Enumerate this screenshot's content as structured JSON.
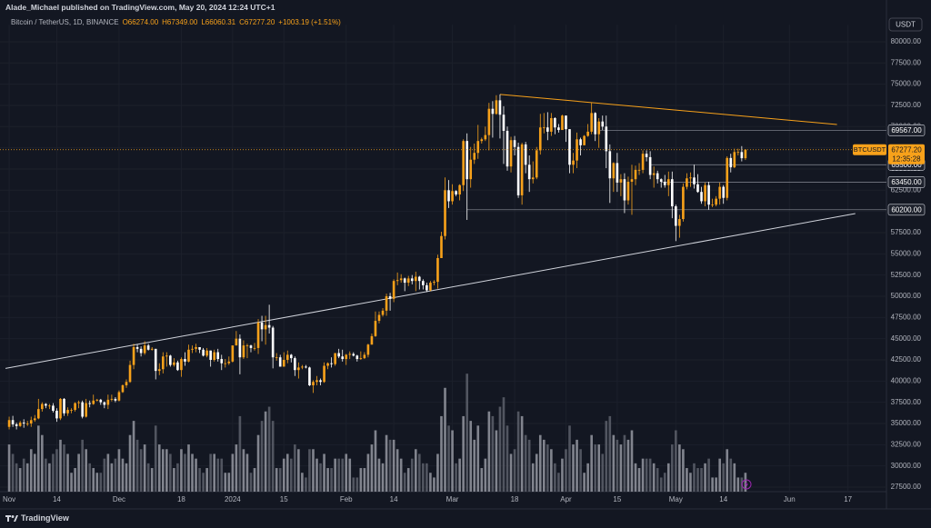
{
  "header": {
    "title": "Alade_Michael published on TradingView.com, May 20, 2024 12:24 UTC+1"
  },
  "legend": {
    "symbol": "Bitcoin / TetherUS, 1D, BINANCE",
    "items": [
      "O66274.00",
      "H67349.00",
      "L66060.31",
      "C67277.20",
      "+1003.19 (+1.51%)"
    ]
  },
  "footer": {
    "brand": "TradingView"
  },
  "chart_data": {
    "type": "candlestick",
    "currency": "USDT",
    "up_color": "#f7a11a",
    "down_color": "#ffffff",
    "volume_up_color": "#9598a1",
    "volume_down_color": "#5d606b",
    "grid": true,
    "xlim": [
      -2.5,
      239.5
    ],
    "xticks": [
      {
        "value": 0,
        "label": "Nov"
      },
      {
        "value": 13,
        "label": "14"
      },
      {
        "value": 30,
        "label": "Dec"
      },
      {
        "value": 47,
        "label": "18"
      },
      {
        "value": 61,
        "label": "2024"
      },
      {
        "value": 75,
        "label": "15"
      },
      {
        "value": 92,
        "label": "Feb"
      },
      {
        "value": 105,
        "label": "14"
      },
      {
        "value": 121,
        "label": "Mar"
      },
      {
        "value": 138,
        "label": "18"
      },
      {
        "value": 152,
        "label": "Apr"
      },
      {
        "value": 166,
        "label": "15"
      },
      {
        "value": 182,
        "label": "May"
      },
      {
        "value": 195,
        "label": "14"
      },
      {
        "value": 213,
        "label": "Jun"
      },
      {
        "value": 229,
        "label": "17"
      }
    ],
    "ylim": [
      26000,
      82000
    ],
    "yticks": [
      {
        "value": 27500,
        "label": "27500.00"
      },
      {
        "value": 30000,
        "label": "30000.00"
      },
      {
        "value": 32500,
        "label": "32500.00"
      },
      {
        "value": 35000,
        "label": "35000.00"
      },
      {
        "value": 37500,
        "label": "37500.00"
      },
      {
        "value": 40000,
        "label": "40000.00"
      },
      {
        "value": 42500,
        "label": "42500.00"
      },
      {
        "value": 45000,
        "label": "45000.00"
      },
      {
        "value": 47500,
        "label": "47500.00"
      },
      {
        "value": 50000,
        "label": "50000.00"
      },
      {
        "value": 52500,
        "label": "52500.00"
      },
      {
        "value": 55000,
        "label": "55000.00"
      },
      {
        "value": 57500,
        "label": "57500.00"
      },
      {
        "value": 60000,
        "label": "60000.00"
      },
      {
        "value": 62500,
        "label": "62500.00"
      },
      {
        "value": 65000,
        "label": "65000.00"
      },
      {
        "value": 67500,
        "label": "67500.00"
      },
      {
        "value": 70000,
        "label": "70000.00"
      },
      {
        "value": 72500,
        "label": "72500.00"
      },
      {
        "value": 75000,
        "label": "75000.00"
      },
      {
        "value": 77500,
        "label": "77500.00"
      },
      {
        "value": 80000,
        "label": "80000.00"
      }
    ],
    "open": [
      34600,
      35400,
      34900,
      34700,
      35100,
      35000,
      35000,
      35400,
      35600,
      36700,
      37300,
      37100,
      37100,
      36500,
      35600,
      37900,
      36200,
      36600,
      36600,
      37400,
      37500,
      35800,
      37400,
      37300,
      37700,
      37800,
      37500,
      37200,
      37800,
      37900,
      37700,
      38700,
      39500,
      39900,
      41900,
      44000,
      43800,
      43300,
      44200,
      43700,
      43800,
      41200,
      41400,
      42900,
      43000,
      41900,
      42200,
      41300,
      42600,
      42300,
      43700,
      43800,
      44000,
      43700,
      43000,
      43600,
      42500,
      43400,
      42600,
      42100,
      42100,
      42300,
      44200,
      45000,
      42800,
      44200,
      44200,
      43900,
      43900,
      46900,
      46100,
      46600,
      46300,
      42800,
      42800,
      41700,
      42500,
      43100,
      42700,
      41300,
      41600,
      41700,
      41600,
      39500,
      39900,
      40100,
      39900,
      41800,
      42100,
      42000,
      43300,
      42900,
      42600,
      43100,
      43200,
      43000,
      42600,
      42700,
      43100,
      44300,
      45300,
      47100,
      47800,
      48300,
      50000,
      49700,
      51800,
      51900,
      52100,
      51600,
      52100,
      51800,
      52300,
      51800,
      51300,
      50700,
      51600,
      51700,
      54500,
      57100,
      62500,
      61200,
      62400,
      62000,
      63100,
      68300,
      63800,
      66100,
      66900,
      68300,
      68500,
      69000,
      72100,
      71500,
      73100,
      71400,
      69500,
      65300,
      68400,
      67600,
      61900,
      67900,
      65500,
      63800,
      64000,
      67200,
      69900,
      69900,
      69400,
      71000,
      69900,
      69600,
      71300,
      69700,
      65500,
      66000,
      68500,
      67800,
      68900,
      69400,
      71600,
      69100,
      70600,
      70000,
      67100,
      63900,
      65700,
      63400,
      63800,
      61300,
      63500,
      63800,
      64900,
      64900,
      66800,
      66400,
      64300,
      64500,
      63800,
      63500,
      63100,
      63800,
      60600,
      58300,
      59100,
      62900,
      63900,
      64000,
      63200,
      62300,
      61200,
      63100,
      60800,
      60800,
      61500,
      62900,
      61600,
      66300,
      65200,
      67000,
      67000,
      66274
    ],
    "high": [
      35800,
      35900,
      35100,
      35300,
      35500,
      35300,
      35800,
      36000,
      37900,
      37500,
      37400,
      37300,
      37400,
      36800,
      38000,
      38000,
      36900,
      36800,
      37500,
      37700,
      37700,
      37900,
      37700,
      38400,
      37900,
      37900,
      37600,
      38400,
      38400,
      38100,
      38900,
      39600,
      40200,
      42400,
      44400,
      44300,
      44100,
      44700,
      44400,
      44000,
      43800,
      42100,
      43400,
      43400,
      43100,
      42700,
      42400,
      42800,
      43400,
      44300,
      44200,
      44400,
      44000,
      43900,
      43900,
      43600,
      43700,
      43800,
      43100,
      42600,
      42900,
      44200,
      45900,
      45500,
      44800,
      44400,
      44300,
      44500,
      47300,
      47700,
      47700,
      49000,
      46500,
      43300,
      43100,
      43400,
      43600,
      43200,
      42900,
      42200,
      41900,
      41900,
      41700,
      40100,
      40600,
      40300,
      42200,
      42200,
      42800,
      43300,
      43800,
      43700,
      43200,
      43500,
      43400,
      43100,
      43500,
      43400,
      44400,
      45600,
      48200,
      48200,
      48600,
      50300,
      50400,
      52000,
      52800,
      52600,
      52200,
      52400,
      52500,
      52900,
      52400,
      52000,
      51600,
      51800,
      51900,
      54900,
      57600,
      64000,
      63700,
      63200,
      62500,
      63200,
      68500,
      69200,
      67600,
      68000,
      70200,
      68700,
      70000,
      72800,
      73000,
      73700,
      73800,
      72400,
      70000,
      68800,
      68900,
      68100,
      68100,
      68200,
      66600,
      65900,
      67600,
      71500,
      71600,
      71700,
      71600,
      71100,
      70300,
      71400,
      71300,
      69700,
      66900,
      69300,
      68700,
      69000,
      70300,
      72800,
      71700,
      71000,
      71300,
      71300,
      67900,
      65800,
      66900,
      64400,
      64500,
      64100,
      65500,
      65400,
      65700,
      67200,
      67200,
      67100,
      65300,
      64800,
      63900,
      64300,
      64700,
      64700,
      60800,
      59600,
      63300,
      64500,
      64600,
      65500,
      64400,
      62900,
      63400,
      63500,
      61500,
      61800,
      63400,
      63100,
      66500,
      66800,
      67400,
      67400,
      67700,
      67349
    ],
    "low": [
      34300,
      34600,
      34300,
      34600,
      34500,
      34700,
      34600,
      35200,
      35500,
      36400,
      36800,
      36700,
      36300,
      35200,
      35400,
      35900,
      35900,
      36200,
      36400,
      36800,
      35600,
      35700,
      36900,
      37200,
      37600,
      37200,
      36800,
      36700,
      37600,
      37500,
      37600,
      38600,
      39200,
      39800,
      41400,
      43400,
      42900,
      43100,
      43600,
      43600,
      40200,
      40700,
      40900,
      41700,
      41700,
      41700,
      41200,
      40500,
      41800,
      42200,
      43300,
      43400,
      43300,
      42900,
      42800,
      41700,
      42300,
      42300,
      41300,
      41600,
      41900,
      42200,
      44200,
      40800,
      42600,
      42700,
      43400,
      43600,
      43200,
      44700,
      44300,
      45600,
      41500,
      42400,
      41700,
      41700,
      42100,
      42200,
      40600,
      40300,
      41400,
      41500,
      39400,
      38600,
      39500,
      39500,
      39800,
      41400,
      41600,
      41800,
      42700,
      42300,
      41900,
      42600,
      42900,
      42300,
      42500,
      42600,
      42800,
      44300,
      45200,
      46800,
      47600,
      47700,
      48300,
      49300,
      51300,
      51600,
      50600,
      51200,
      51400,
      50600,
      50800,
      50800,
      50500,
      50600,
      51300,
      50900,
      54500,
      56700,
      60400,
      60800,
      61800,
      61300,
      62400,
      59000,
      62800,
      65600,
      66200,
      68000,
      68300,
      67200,
      68700,
      71400,
      68600,
      65600,
      64800,
      64600,
      66600,
      61600,
      60800,
      64500,
      62300,
      63300,
      63800,
      66700,
      69200,
      68400,
      68900,
      69100,
      69300,
      69600,
      68200,
      64500,
      64500,
      65100,
      66600,
      67800,
      68800,
      69100,
      68300,
      67500,
      69600,
      65100,
      61000,
      62300,
      62300,
      61800,
      59800,
      60800,
      59600,
      63100,
      64300,
      64500,
      65900,
      63800,
      62800,
      63300,
      62800,
      62800,
      61800,
      59200,
      56500,
      56900,
      58800,
      62600,
      62900,
      62700,
      62200,
      60900,
      60600,
      60200,
      60500,
      60600,
      60800,
      60900,
      61300,
      64600,
      65100,
      66600,
      65900,
      66060
    ],
    "close": [
      35400,
      34900,
      34700,
      35100,
      35000,
      35000,
      35400,
      35600,
      36700,
      37300,
      37100,
      37100,
      36500,
      35600,
      37900,
      36200,
      36600,
      36600,
      37400,
      37500,
      35800,
      37400,
      37300,
      37700,
      37800,
      37500,
      37200,
      37800,
      37900,
      37700,
      38700,
      39500,
      39900,
      41900,
      44000,
      43800,
      43300,
      44200,
      43700,
      43800,
      41200,
      41400,
      42900,
      43000,
      41900,
      42200,
      41300,
      42600,
      42300,
      43700,
      43800,
      44000,
      43700,
      43000,
      43600,
      42500,
      43400,
      42600,
      42100,
      42100,
      42300,
      44200,
      45000,
      42800,
      44200,
      44200,
      43900,
      43900,
      46900,
      46100,
      46600,
      46300,
      42800,
      42800,
      41700,
      42500,
      43100,
      42700,
      41300,
      41600,
      41700,
      41600,
      39500,
      39900,
      40100,
      39900,
      41800,
      42100,
      42000,
      43300,
      42900,
      42600,
      43100,
      43200,
      43000,
      42600,
      42700,
      43100,
      44300,
      45300,
      47100,
      47800,
      48300,
      50000,
      49700,
      51800,
      51900,
      52100,
      51600,
      52100,
      51800,
      52300,
      51800,
      51300,
      50700,
      51600,
      51700,
      54500,
      57100,
      62500,
      61200,
      62400,
      62000,
      63100,
      68300,
      63800,
      66100,
      66900,
      68300,
      68500,
      69000,
      72100,
      71500,
      73100,
      71400,
      69500,
      65300,
      68400,
      67600,
      61900,
      67900,
      65500,
      63800,
      64000,
      67200,
      69900,
      69900,
      69400,
      71000,
      69900,
      69600,
      71300,
      69700,
      65500,
      66000,
      68500,
      67800,
      68900,
      69400,
      71600,
      69100,
      70600,
      70000,
      67100,
      63900,
      65700,
      63400,
      63800,
      61300,
      63500,
      63800,
      64900,
      64900,
      66800,
      66400,
      64300,
      64500,
      63800,
      63500,
      63100,
      63800,
      60600,
      58300,
      59100,
      62900,
      63900,
      64000,
      63200,
      62300,
      61200,
      63100,
      60800,
      60800,
      61500,
      62900,
      61600,
      66300,
      65200,
      67000,
      67000,
      66274,
      67277.2
    ],
    "volume_ylim": [
      0,
      130
    ],
    "volume": [
      50,
      40,
      30,
      25,
      35,
      30,
      45,
      40,
      70,
      60,
      35,
      30,
      40,
      45,
      55,
      50,
      40,
      20,
      25,
      40,
      55,
      45,
      30,
      25,
      20,
      20,
      35,
      40,
      30,
      35,
      45,
      35,
      30,
      60,
      75,
      55,
      45,
      50,
      30,
      25,
      70,
      50,
      45,
      45,
      40,
      25,
      30,
      45,
      40,
      50,
      40,
      35,
      25,
      20,
      25,
      40,
      40,
      35,
      35,
      20,
      20,
      40,
      50,
      80,
      45,
      40,
      20,
      25,
      60,
      75,
      85,
      90,
      75,
      25,
      25,
      35,
      40,
      35,
      50,
      45,
      20,
      15,
      45,
      45,
      35,
      30,
      40,
      25,
      25,
      35,
      35,
      35,
      40,
      35,
      15,
      15,
      25,
      25,
      40,
      50,
      65,
      35,
      30,
      60,
      55,
      55,
      45,
      35,
      20,
      25,
      35,
      45,
      40,
      30,
      30,
      20,
      15,
      40,
      80,
      110,
      70,
      65,
      30,
      35,
      80,
      125,
      75,
      55,
      70,
      25,
      35,
      85,
      80,
      65,
      90,
      100,
      70,
      40,
      45,
      85,
      80,
      60,
      55,
      30,
      40,
      60,
      55,
      50,
      45,
      30,
      20,
      35,
      45,
      70,
      50,
      55,
      45,
      20,
      30,
      60,
      50,
      50,
      40,
      75,
      80,
      60,
      55,
      50,
      60,
      55,
      65,
      30,
      25,
      35,
      35,
      35,
      30,
      25,
      15,
      20,
      30,
      50,
      65,
      50,
      45,
      25,
      20,
      30,
      25,
      25,
      30,
      35,
      15,
      15,
      35,
      30,
      45,
      35,
      30,
      15,
      15,
      20
    ],
    "trendlines": [
      {
        "color": "#d1d4dc",
        "points": [
          [
            -1,
            41500
          ],
          [
            231,
            59750
          ]
        ]
      },
      {
        "color": "#f7a11a",
        "points": [
          [
            134,
            73800
          ],
          [
            226,
            70250
          ]
        ]
      }
    ],
    "levels": [
      {
        "value": 69567,
        "label": "69567.00",
        "from": 161
      },
      {
        "value": 65500,
        "label": "65500.00",
        "from": 175
      },
      {
        "value": 63450,
        "label": "63450.00",
        "from": 178
      },
      {
        "value": 60200,
        "label": "60200.00",
        "from": 125
      }
    ],
    "last_price": {
      "value": 67277.2,
      "label": "67277.20",
      "symbol": "BTCUSDT",
      "countdown": "12:35:28"
    }
  }
}
